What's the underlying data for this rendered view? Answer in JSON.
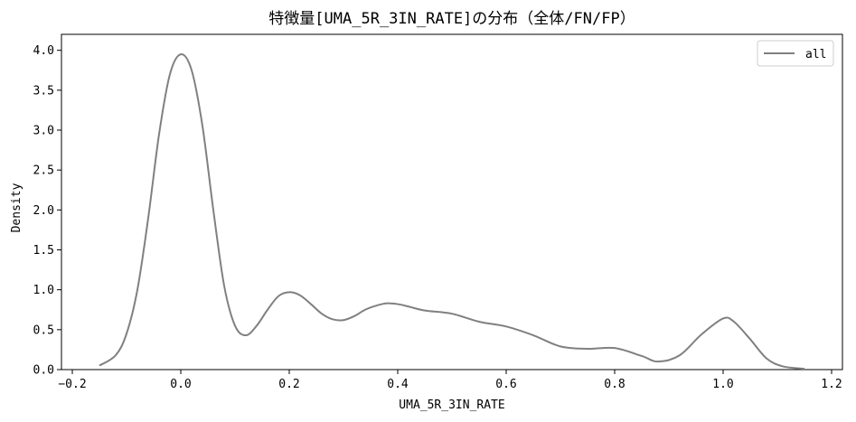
{
  "chart_data": {
    "type": "line",
    "title": "特徴量[UMA_5R_3IN_RATE]の分布（全体/FN/FP）",
    "xlabel": "UMA_5R_3IN_RATE",
    "ylabel": "Density",
    "xlim": [
      -0.22,
      1.22
    ],
    "ylim": [
      0,
      4.2
    ],
    "x_ticks": [
      -0.2,
      0.0,
      0.2,
      0.4,
      0.6,
      0.8,
      1.0,
      1.2
    ],
    "x_tick_labels": [
      "−0.2",
      "0.0",
      "0.2",
      "0.4",
      "0.6",
      "0.8",
      "1.0",
      "1.2"
    ],
    "y_ticks": [
      0.0,
      0.5,
      1.0,
      1.5,
      2.0,
      2.5,
      3.0,
      3.5,
      4.0
    ],
    "y_tick_labels": [
      "0.0",
      "0.5",
      "1.0",
      "1.5",
      "2.0",
      "2.5",
      "3.0",
      "3.5",
      "4.0"
    ],
    "grid": false,
    "legend": {
      "position": "top-right",
      "entries": [
        "all"
      ]
    },
    "series": [
      {
        "name": "all",
        "color": "#808080",
        "x": [
          -0.15,
          -0.12,
          -0.1,
          -0.08,
          -0.06,
          -0.04,
          -0.02,
          0.0,
          0.02,
          0.04,
          0.06,
          0.08,
          0.1,
          0.12,
          0.14,
          0.16,
          0.18,
          0.2,
          0.22,
          0.24,
          0.26,
          0.28,
          0.3,
          0.32,
          0.34,
          0.36,
          0.38,
          0.4,
          0.42,
          0.45,
          0.5,
          0.55,
          0.6,
          0.65,
          0.7,
          0.75,
          0.8,
          0.85,
          0.88,
          0.92,
          0.96,
          1.0,
          1.02,
          1.05,
          1.08,
          1.11,
          1.15
        ],
        "y": [
          0.05,
          0.18,
          0.45,
          1.0,
          1.9,
          2.95,
          3.7,
          3.95,
          3.75,
          3.05,
          2.0,
          1.05,
          0.55,
          0.43,
          0.55,
          0.75,
          0.92,
          0.97,
          0.93,
          0.82,
          0.7,
          0.63,
          0.62,
          0.67,
          0.75,
          0.8,
          0.83,
          0.82,
          0.79,
          0.74,
          0.7,
          0.6,
          0.54,
          0.43,
          0.29,
          0.26,
          0.27,
          0.17,
          0.1,
          0.18,
          0.44,
          0.64,
          0.6,
          0.38,
          0.14,
          0.04,
          0.01
        ]
      }
    ]
  }
}
